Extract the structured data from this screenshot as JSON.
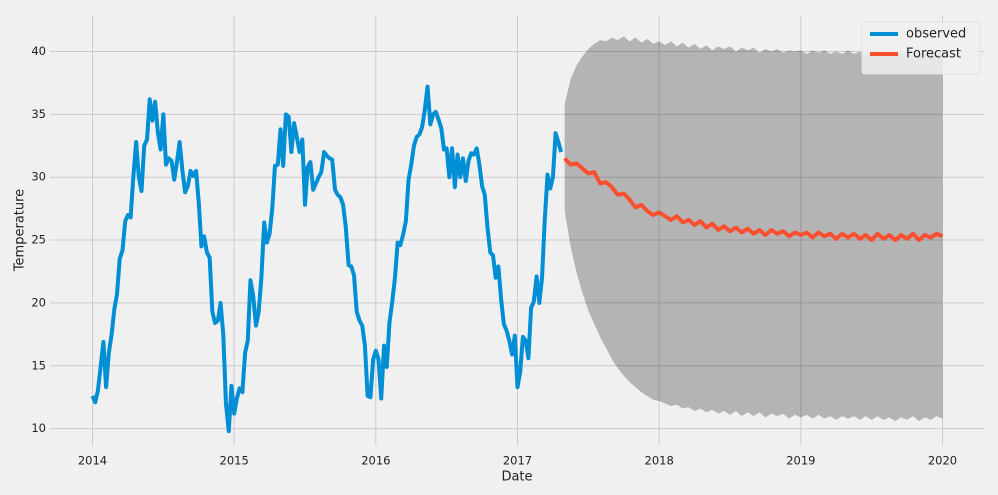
{
  "chart_data": {
    "type": "line",
    "x_label": "Date",
    "y_label": "Temperature",
    "xlim": [
      2013.7,
      2020.3
    ],
    "xticks": [
      2014,
      2015,
      2016,
      2017,
      2018,
      2019,
      2020
    ],
    "ylim": [
      8.7,
      42.9
    ],
    "yticks": [
      10,
      15,
      20,
      25,
      30,
      35,
      40
    ],
    "grid": true,
    "legend": "upper right",
    "series": [
      {
        "name": "observed",
        "color": "#008fd5",
        "x": [
          2014,
          2014.019,
          2014.038,
          2014.058,
          2014.077,
          2014.096,
          2014.115,
          2014.135,
          2014.154,
          2014.173,
          2014.192,
          2014.212,
          2014.231,
          2014.25,
          2014.269,
          2014.288,
          2014.308,
          2014.327,
          2014.346,
          2014.365,
          2014.385,
          2014.404,
          2014.423,
          2014.442,
          2014.462,
          2014.481,
          2014.5,
          2014.519,
          2014.538,
          2014.558,
          2014.577,
          2014.596,
          2014.615,
          2014.635,
          2014.654,
          2014.673,
          2014.692,
          2014.712,
          2014.731,
          2014.75,
          2014.769,
          2014.788,
          2014.808,
          2014.827,
          2014.846,
          2014.865,
          2014.885,
          2014.904,
          2014.923,
          2014.942,
          2014.962,
          2014.981,
          2015,
          2015.019,
          2015.038,
          2015.058,
          2015.077,
          2015.096,
          2015.115,
          2015.135,
          2015.154,
          2015.173,
          2015.192,
          2015.212,
          2015.231,
          2015.25,
          2015.269,
          2015.288,
          2015.308,
          2015.327,
          2015.346,
          2015.365,
          2015.385,
          2015.404,
          2015.423,
          2015.442,
          2015.462,
          2015.481,
          2015.5,
          2015.519,
          2015.538,
          2015.558,
          2015.577,
          2015.596,
          2015.615,
          2015.635,
          2015.654,
          2015.673,
          2015.692,
          2015.712,
          2015.731,
          2015.75,
          2015.769,
          2015.788,
          2015.808,
          2015.827,
          2015.846,
          2015.865,
          2015.885,
          2015.904,
          2015.923,
          2015.942,
          2015.962,
          2015.981,
          2016,
          2016.019,
          2016.038,
          2016.058,
          2016.077,
          2016.096,
          2016.115,
          2016.135,
          2016.154,
          2016.173,
          2016.192,
          2016.212,
          2016.231,
          2016.25,
          2016.269,
          2016.288,
          2016.308,
          2016.327,
          2016.346,
          2016.365,
          2016.385,
          2016.404,
          2016.423,
          2016.442,
          2016.462,
          2016.481,
          2016.5,
          2016.519,
          2016.538,
          2016.558,
          2016.577,
          2016.596,
          2016.615,
          2016.635,
          2016.654,
          2016.673,
          2016.692,
          2016.712,
          2016.731,
          2016.75,
          2016.769,
          2016.788,
          2016.808,
          2016.827,
          2016.846,
          2016.865,
          2016.885,
          2016.904,
          2016.923,
          2016.942,
          2016.962,
          2016.981,
          2017,
          2017.019,
          2017.038,
          2017.058,
          2017.077,
          2017.096,
          2017.115,
          2017.135,
          2017.154,
          2017.173,
          2017.192,
          2017.212,
          2017.231,
          2017.25,
          2017.269,
          2017.288,
          2017.308
        ],
        "values": [
          12.6,
          12.1,
          13,
          15,
          16.9,
          13.3,
          16,
          17.5,
          19.5,
          20.7,
          23.5,
          24.2,
          26.5,
          27,
          26.8,
          30,
          32.8,
          30,
          28.9,
          32.5,
          33,
          36.2,
          34.5,
          36,
          33.5,
          32.2,
          35,
          31,
          31.5,
          31.3,
          29.8,
          31.2,
          32.8,
          30.5,
          28.8,
          29.3,
          30.5,
          30.1,
          30.5,
          28,
          24.5,
          25.3,
          24,
          23.6,
          19.3,
          18.4,
          18.6,
          20,
          17.5,
          12,
          9.8,
          13.4,
          11.2,
          12.4,
          13.2,
          12.9,
          16,
          17,
          21.8,
          20.5,
          18.2,
          19.3,
          22,
          26.4,
          24.8,
          25.5,
          27.5,
          30.9,
          31,
          33.8,
          30.9,
          35,
          34.8,
          32,
          34.3,
          33.2,
          32,
          33,
          27.8,
          30.8,
          31.2,
          29,
          29.5,
          30,
          30.4,
          32,
          31.7,
          31.5,
          31.4,
          29,
          28.6,
          28.4,
          27.8,
          26,
          23,
          22.9,
          22.2,
          19.3,
          18.6,
          18.2,
          16.6,
          12.6,
          12.5,
          15.5,
          16.2,
          15.5,
          12.4,
          16.6,
          14.9,
          18.4,
          20,
          22,
          24.8,
          24.6,
          25.4,
          26.5,
          29.8,
          31,
          32.5,
          33.2,
          33.4,
          34,
          35.4,
          37.2,
          34.2,
          35,
          35.2,
          34.6,
          33.9,
          32.2,
          32.3,
          30,
          32.3,
          29.2,
          31.8,
          30,
          31.5,
          29.7,
          31.3,
          31.9,
          31.8,
          32.3,
          31,
          29.3,
          28.6,
          26,
          24,
          23.8,
          22,
          22.9,
          20.2,
          18.3,
          17.8,
          17,
          15.9,
          17.4,
          13.3,
          14.5,
          17.3,
          17,
          15.6,
          19.6,
          20.1,
          22.1,
          20,
          22,
          26.5,
          30.2,
          29.1,
          30,
          33.5,
          32.8,
          32
        ]
      },
      {
        "name": "Forecast",
        "color": "#fc4f30",
        "band_color": "#000000",
        "x": [
          2017.333,
          2017.375,
          2017.417,
          2017.458,
          2017.5,
          2017.542,
          2017.583,
          2017.625,
          2017.667,
          2017.708,
          2017.75,
          2017.792,
          2017.833,
          2017.875,
          2017.917,
          2017.958,
          2018,
          2018.042,
          2018.083,
          2018.125,
          2018.167,
          2018.208,
          2018.25,
          2018.292,
          2018.333,
          2018.375,
          2018.417,
          2018.458,
          2018.5,
          2018.542,
          2018.583,
          2018.625,
          2018.667,
          2018.708,
          2018.75,
          2018.792,
          2018.833,
          2018.875,
          2018.917,
          2018.958,
          2019,
          2019.042,
          2019.083,
          2019.125,
          2019.167,
          2019.208,
          2019.25,
          2019.292,
          2019.333,
          2019.375,
          2019.417,
          2019.458,
          2019.5,
          2019.542,
          2019.583,
          2019.625,
          2019.667,
          2019.708,
          2019.75,
          2019.792,
          2019.833,
          2019.875,
          2019.917,
          2019.958,
          2020
        ],
        "values": [
          31.5,
          31.0,
          31.1,
          30.7,
          30.3,
          30.4,
          29.5,
          29.6,
          29.2,
          28.6,
          28.7,
          28.2,
          27.6,
          27.8,
          27.3,
          27.0,
          27.2,
          26.9,
          26.6,
          26.9,
          26.4,
          26.6,
          26.2,
          26.5,
          26.0,
          26.3,
          25.8,
          26.1,
          25.7,
          26.0,
          25.6,
          25.9,
          25.5,
          25.8,
          25.4,
          25.8,
          25.5,
          25.7,
          25.3,
          25.6,
          25.4,
          25.6,
          25.2,
          25.6,
          25.3,
          25.5,
          25.1,
          25.5,
          25.2,
          25.5,
          25.1,
          25.4,
          25.0,
          25.5,
          25.1,
          25.4,
          25.0,
          25.4,
          25.1,
          25.5,
          25.0,
          25.4,
          25.2,
          25.5,
          25.3
        ],
        "lower": [
          27.3,
          24.5,
          22.4,
          20.8,
          19.4,
          18.3,
          17.3,
          16.4,
          15.5,
          14.8,
          14.2,
          13.7,
          13.3,
          12.9,
          12.6,
          12.3,
          12.2,
          12.0,
          11.8,
          11.9,
          11.6,
          11.7,
          11.4,
          11.6,
          11.3,
          11.5,
          11.2,
          11.4,
          11.1,
          11.4,
          11.0,
          11.3,
          11.0,
          11.3,
          10.9,
          11.2,
          11.0,
          11.2,
          10.8,
          11.1,
          10.9,
          11.1,
          10.8,
          11.1,
          10.8,
          11.0,
          10.7,
          11.0,
          10.8,
          11.0,
          10.7,
          11.0,
          10.7,
          11.0,
          10.7,
          10.9,
          10.6,
          10.9,
          10.7,
          11.0,
          10.6,
          10.9,
          10.7,
          11.0,
          10.8
        ],
        "upper": [
          35.8,
          37.8,
          38.9,
          39.6,
          40.2,
          40.6,
          40.9,
          40.8,
          41.1,
          40.9,
          41.2,
          40.8,
          41.1,
          40.7,
          41.0,
          40.6,
          40.8,
          40.5,
          40.8,
          40.4,
          40.7,
          40.3,
          40.6,
          40.2,
          40.5,
          40.1,
          40.4,
          40.2,
          40.4,
          40.0,
          40.3,
          40.1,
          40.3,
          39.9,
          40.2,
          40.0,
          40.2,
          39.9,
          40.1,
          40.0,
          40.1,
          39.8,
          40.1,
          39.9,
          40.1,
          39.8,
          40.0,
          39.8,
          40.1,
          39.8,
          40.0,
          39.7,
          40.0,
          39.8,
          40.0,
          39.7,
          40.0,
          39.8,
          40.0,
          39.7,
          39.9,
          39.8,
          40.0,
          39.8,
          39.9
        ]
      }
    ]
  }
}
